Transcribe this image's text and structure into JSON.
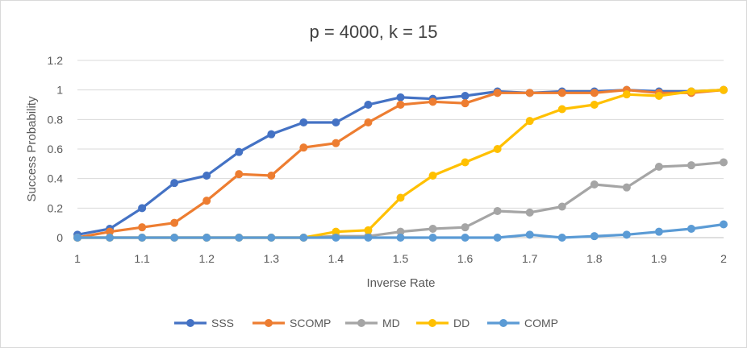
{
  "chart_data": {
    "type": "line",
    "title": "p = 4000, k = 15",
    "xlabel": "Inverse Rate",
    "ylabel": "Success Probability",
    "x": [
      1,
      1.05,
      1.1,
      1.15,
      1.2,
      1.25,
      1.3,
      1.35,
      1.4,
      1.45,
      1.5,
      1.55,
      1.6,
      1.65,
      1.7,
      1.75,
      1.8,
      1.85,
      1.9,
      1.95,
      2
    ],
    "xlim": [
      1,
      2
    ],
    "ylim": [
      0,
      1.2
    ],
    "x_ticks": [
      "1",
      "1.1",
      "1.2",
      "1.3",
      "1.4",
      "1.5",
      "1.6",
      "1.7",
      "1.8",
      "1.9",
      "2"
    ],
    "y_ticks": [
      "0",
      "0.2",
      "0.4",
      "0.6",
      "0.8",
      "1",
      "1.2"
    ],
    "grid": "horizontal",
    "legend_position": "bottom",
    "series": [
      {
        "name": "SSS",
        "color": "#4472C4",
        "values": [
          0.02,
          0.06,
          0.2,
          0.37,
          0.42,
          0.58,
          0.7,
          0.78,
          0.78,
          0.9,
          0.95,
          0.94,
          0.96,
          0.99,
          0.98,
          0.99,
          0.99,
          1.0,
          0.99,
          0.99,
          1.0
        ]
      },
      {
        "name": "SCOMP",
        "color": "#ED7D31",
        "values": [
          0.0,
          0.04,
          0.07,
          0.1,
          0.25,
          0.43,
          0.42,
          0.61,
          0.64,
          0.78,
          0.9,
          0.92,
          0.91,
          0.98,
          0.98,
          0.98,
          0.98,
          1.0,
          0.98,
          0.98,
          1.0
        ]
      },
      {
        "name": "MD",
        "color": "#A5A5A5",
        "values": [
          0,
          0,
          0,
          0,
          0,
          0,
          0,
          0,
          0.01,
          0.01,
          0.04,
          0.06,
          0.07,
          0.18,
          0.17,
          0.21,
          0.36,
          0.34,
          0.48,
          0.49,
          0.51
        ]
      },
      {
        "name": "DD",
        "color": "#FFC000",
        "values": [
          0,
          0,
          0,
          0,
          0,
          0,
          0,
          0,
          0.04,
          0.05,
          0.27,
          0.42,
          0.51,
          0.6,
          0.79,
          0.87,
          0.9,
          0.97,
          0.96,
          0.99,
          1.0
        ]
      },
      {
        "name": "COMP",
        "color": "#5B9BD5",
        "values": [
          0,
          0,
          0,
          0,
          0,
          0,
          0,
          0,
          0,
          0,
          0,
          0,
          0,
          0,
          0.02,
          0,
          0.01,
          0.02,
          0.04,
          0.06,
          0.09
        ]
      }
    ]
  }
}
